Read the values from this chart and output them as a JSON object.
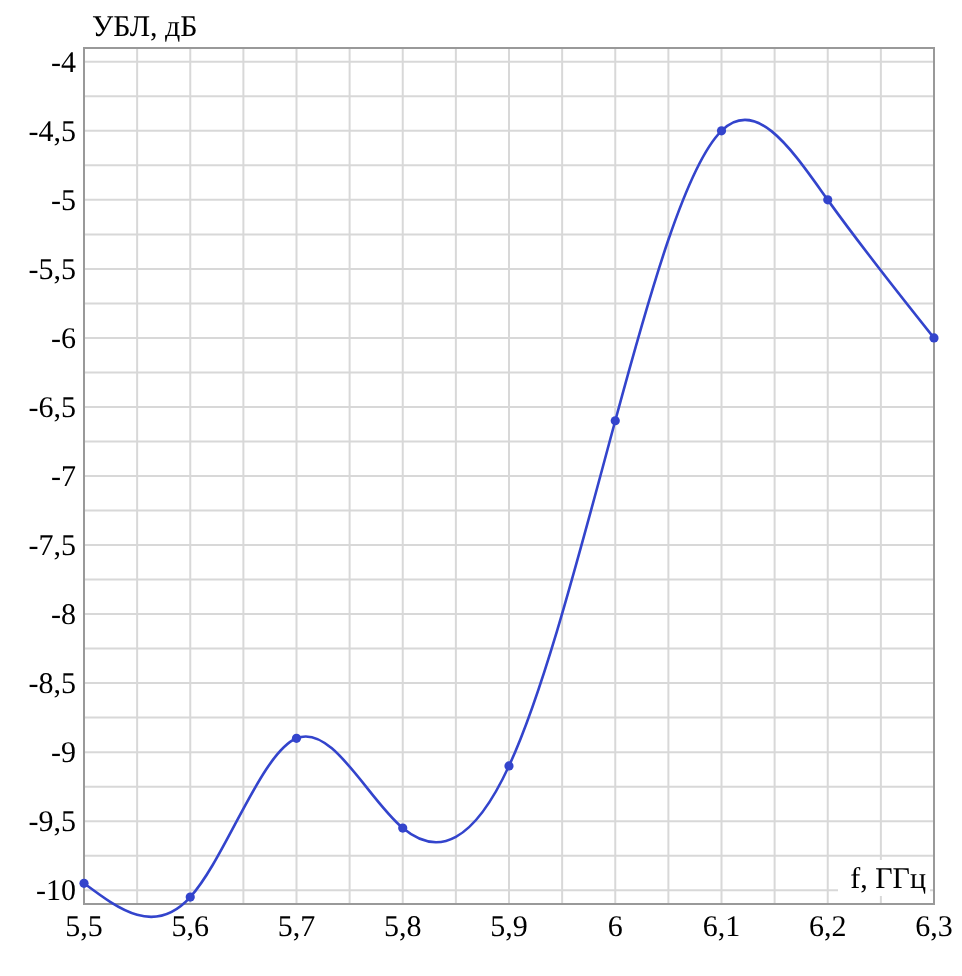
{
  "chart_data": {
    "type": "line",
    "xlabel": "f, ГГц",
    "ylabel": "УБЛ, дБ",
    "x": [
      5.5,
      5.6,
      5.7,
      5.8,
      5.9,
      6.0,
      6.1,
      6.2,
      6.3
    ],
    "series": [
      {
        "color": "#3344cc",
        "values": [
          -9.95,
          -10.05,
          -8.9,
          -9.55,
          -9.1,
          -6.6,
          -4.5,
          -5.0,
          -6.0
        ]
      }
    ],
    "xlim": [
      5.5,
      6.3
    ],
    "ylim": [
      -10.1,
      -3.9
    ],
    "xticks": [
      {
        "value": 5.5,
        "label": "5,5"
      },
      {
        "value": 5.55,
        "label": null
      },
      {
        "value": 5.6,
        "label": "5,6"
      },
      {
        "value": 5.65,
        "label": null
      },
      {
        "value": 5.7,
        "label": "5,7"
      },
      {
        "value": 5.75,
        "label": null
      },
      {
        "value": 5.8,
        "label": "5,8"
      },
      {
        "value": 5.85,
        "label": null
      },
      {
        "value": 5.9,
        "label": "5,9"
      },
      {
        "value": 5.95,
        "label": null
      },
      6,
      {
        "value": 6.05,
        "label": null
      },
      {
        "value": 6.1,
        "label": "6,1"
      },
      {
        "value": 6.15,
        "label": null
      },
      {
        "value": 6.2,
        "label": "6,2"
      },
      {
        "value": 6.25,
        "label": null
      },
      {
        "value": 6.3,
        "label": "6,3"
      }
    ],
    "yticks": [
      -10,
      {
        "value": -9.75,
        "label": null
      },
      {
        "value": -9.5,
        "label": "-9,5"
      },
      {
        "value": -9.25,
        "label": null
      },
      -9,
      {
        "value": -8.75,
        "label": null
      },
      {
        "value": -8.5,
        "label": "-8,5"
      },
      {
        "value": -8.25,
        "label": null
      },
      -8,
      {
        "value": -7.75,
        "label": null
      },
      {
        "value": -7.5,
        "label": "-7,5"
      },
      {
        "value": -7.25,
        "label": null
      },
      -7,
      {
        "value": -6.75,
        "label": null
      },
      {
        "value": -6.5,
        "label": "-6,5"
      },
      {
        "value": -6.25,
        "label": null
      },
      -6,
      {
        "value": -5.75,
        "label": null
      },
      {
        "value": -5.5,
        "label": "-5,5"
      },
      {
        "value": -5.25,
        "label": null
      },
      -5,
      {
        "value": -4.75,
        "label": null
      },
      {
        "value": -4.5,
        "label": "-4,5"
      },
      {
        "value": -4.25,
        "label": null
      },
      -4
    ],
    "grid": true,
    "marker": "circle",
    "line_style": "solid"
  }
}
